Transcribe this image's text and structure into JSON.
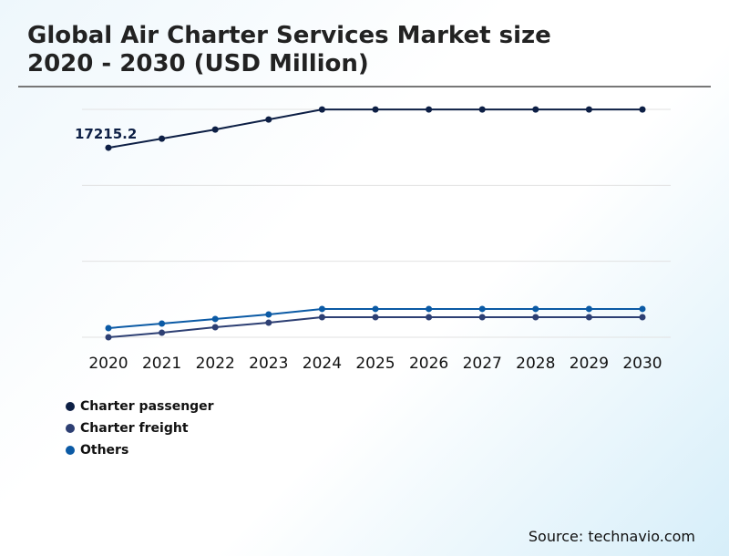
{
  "chart_data": {
    "type": "line",
    "title": "Global Air Charter Services Market size 2020 - 2030 (USD Million)",
    "title_lines": [
      "Global Air Charter Services Market size",
      "2020 - 2030 (USD Million)"
    ],
    "categories": [
      "2020",
      "2021",
      "2022",
      "2023",
      "2024",
      "2025",
      "2026",
      "2027",
      "2028",
      "2029",
      "2030"
    ],
    "series": [
      {
        "name": "Charter passenger",
        "color": "#0d1f45",
        "values": [
          17215.2,
          18040,
          18870,
          19780,
          20690,
          20690,
          20690,
          20690,
          20690,
          20690,
          20690
        ]
      },
      {
        "name": "Charter freight",
        "color": "#2d3f73",
        "values": [
          0,
          410,
          910,
          1320,
          1820,
          1820,
          1820,
          1820,
          1820,
          1820,
          1820
        ]
      },
      {
        "name": "Others",
        "color": "#0b5aa5",
        "values": [
          830,
          1240,
          1660,
          2070,
          2570,
          2570,
          2570,
          2570,
          2570,
          2570,
          2570
        ]
      }
    ],
    "data_labels": [
      {
        "series": "Charter passenger",
        "category": "2020",
        "text": "17215.2"
      }
    ],
    "ylim": [
      0,
      20700
    ],
    "grid": true,
    "legend": "bottom-left",
    "xlabel": "",
    "ylabel": ""
  },
  "source": "Source: technavio.com"
}
